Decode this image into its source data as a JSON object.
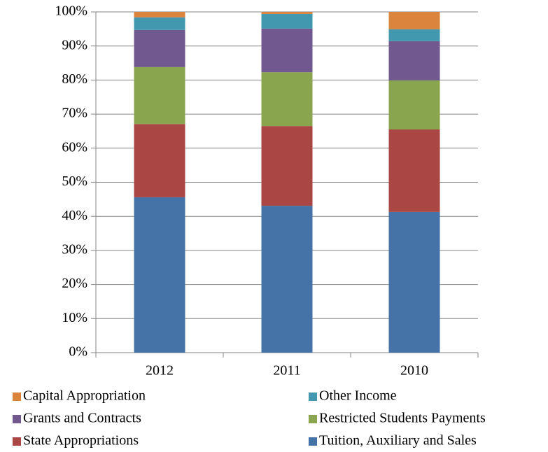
{
  "chart_data": {
    "type": "stacked_bar",
    "categories": [
      "2012",
      "2011",
      "2010"
    ],
    "series": [
      {
        "name": "Tuition, Auxiliary and Sales",
        "color": "#4572a7",
        "values": [
          45.6,
          43.1,
          41.3
        ]
      },
      {
        "name": "State Appropriations",
        "color": "#aa4643",
        "values": [
          21.5,
          23.4,
          24.2
        ]
      },
      {
        "name": "Restricted Students Payments",
        "color": "#89a54e",
        "values": [
          16.7,
          15.8,
          14.4
        ]
      },
      {
        "name": "Grants and Contracts",
        "color": "#71588f",
        "values": [
          10.9,
          12.8,
          11.5
        ]
      },
      {
        "name": "Other Income",
        "color": "#4198af",
        "values": [
          3.7,
          4.3,
          3.5
        ]
      },
      {
        "name": "Capital Appropriation",
        "color": "#db843d",
        "values": [
          1.6,
          0.6,
          5.1
        ]
      }
    ],
    "ylim": [
      0,
      100
    ],
    "yticks": [
      {
        "value": 0,
        "label": "0%"
      },
      {
        "value": 10,
        "label": "10%"
      },
      {
        "value": 20,
        "label": "20%"
      },
      {
        "value": 30,
        "label": "30%"
      },
      {
        "value": 40,
        "label": "40%"
      },
      {
        "value": 50,
        "label": "50%"
      },
      {
        "value": 60,
        "label": "60%"
      },
      {
        "value": 70,
        "label": "70%"
      },
      {
        "value": 80,
        "label": "80%"
      },
      {
        "value": 90,
        "label": "90%"
      },
      {
        "value": 100,
        "label": "100%"
      }
    ],
    "grid": true,
    "legend": "bottom"
  }
}
